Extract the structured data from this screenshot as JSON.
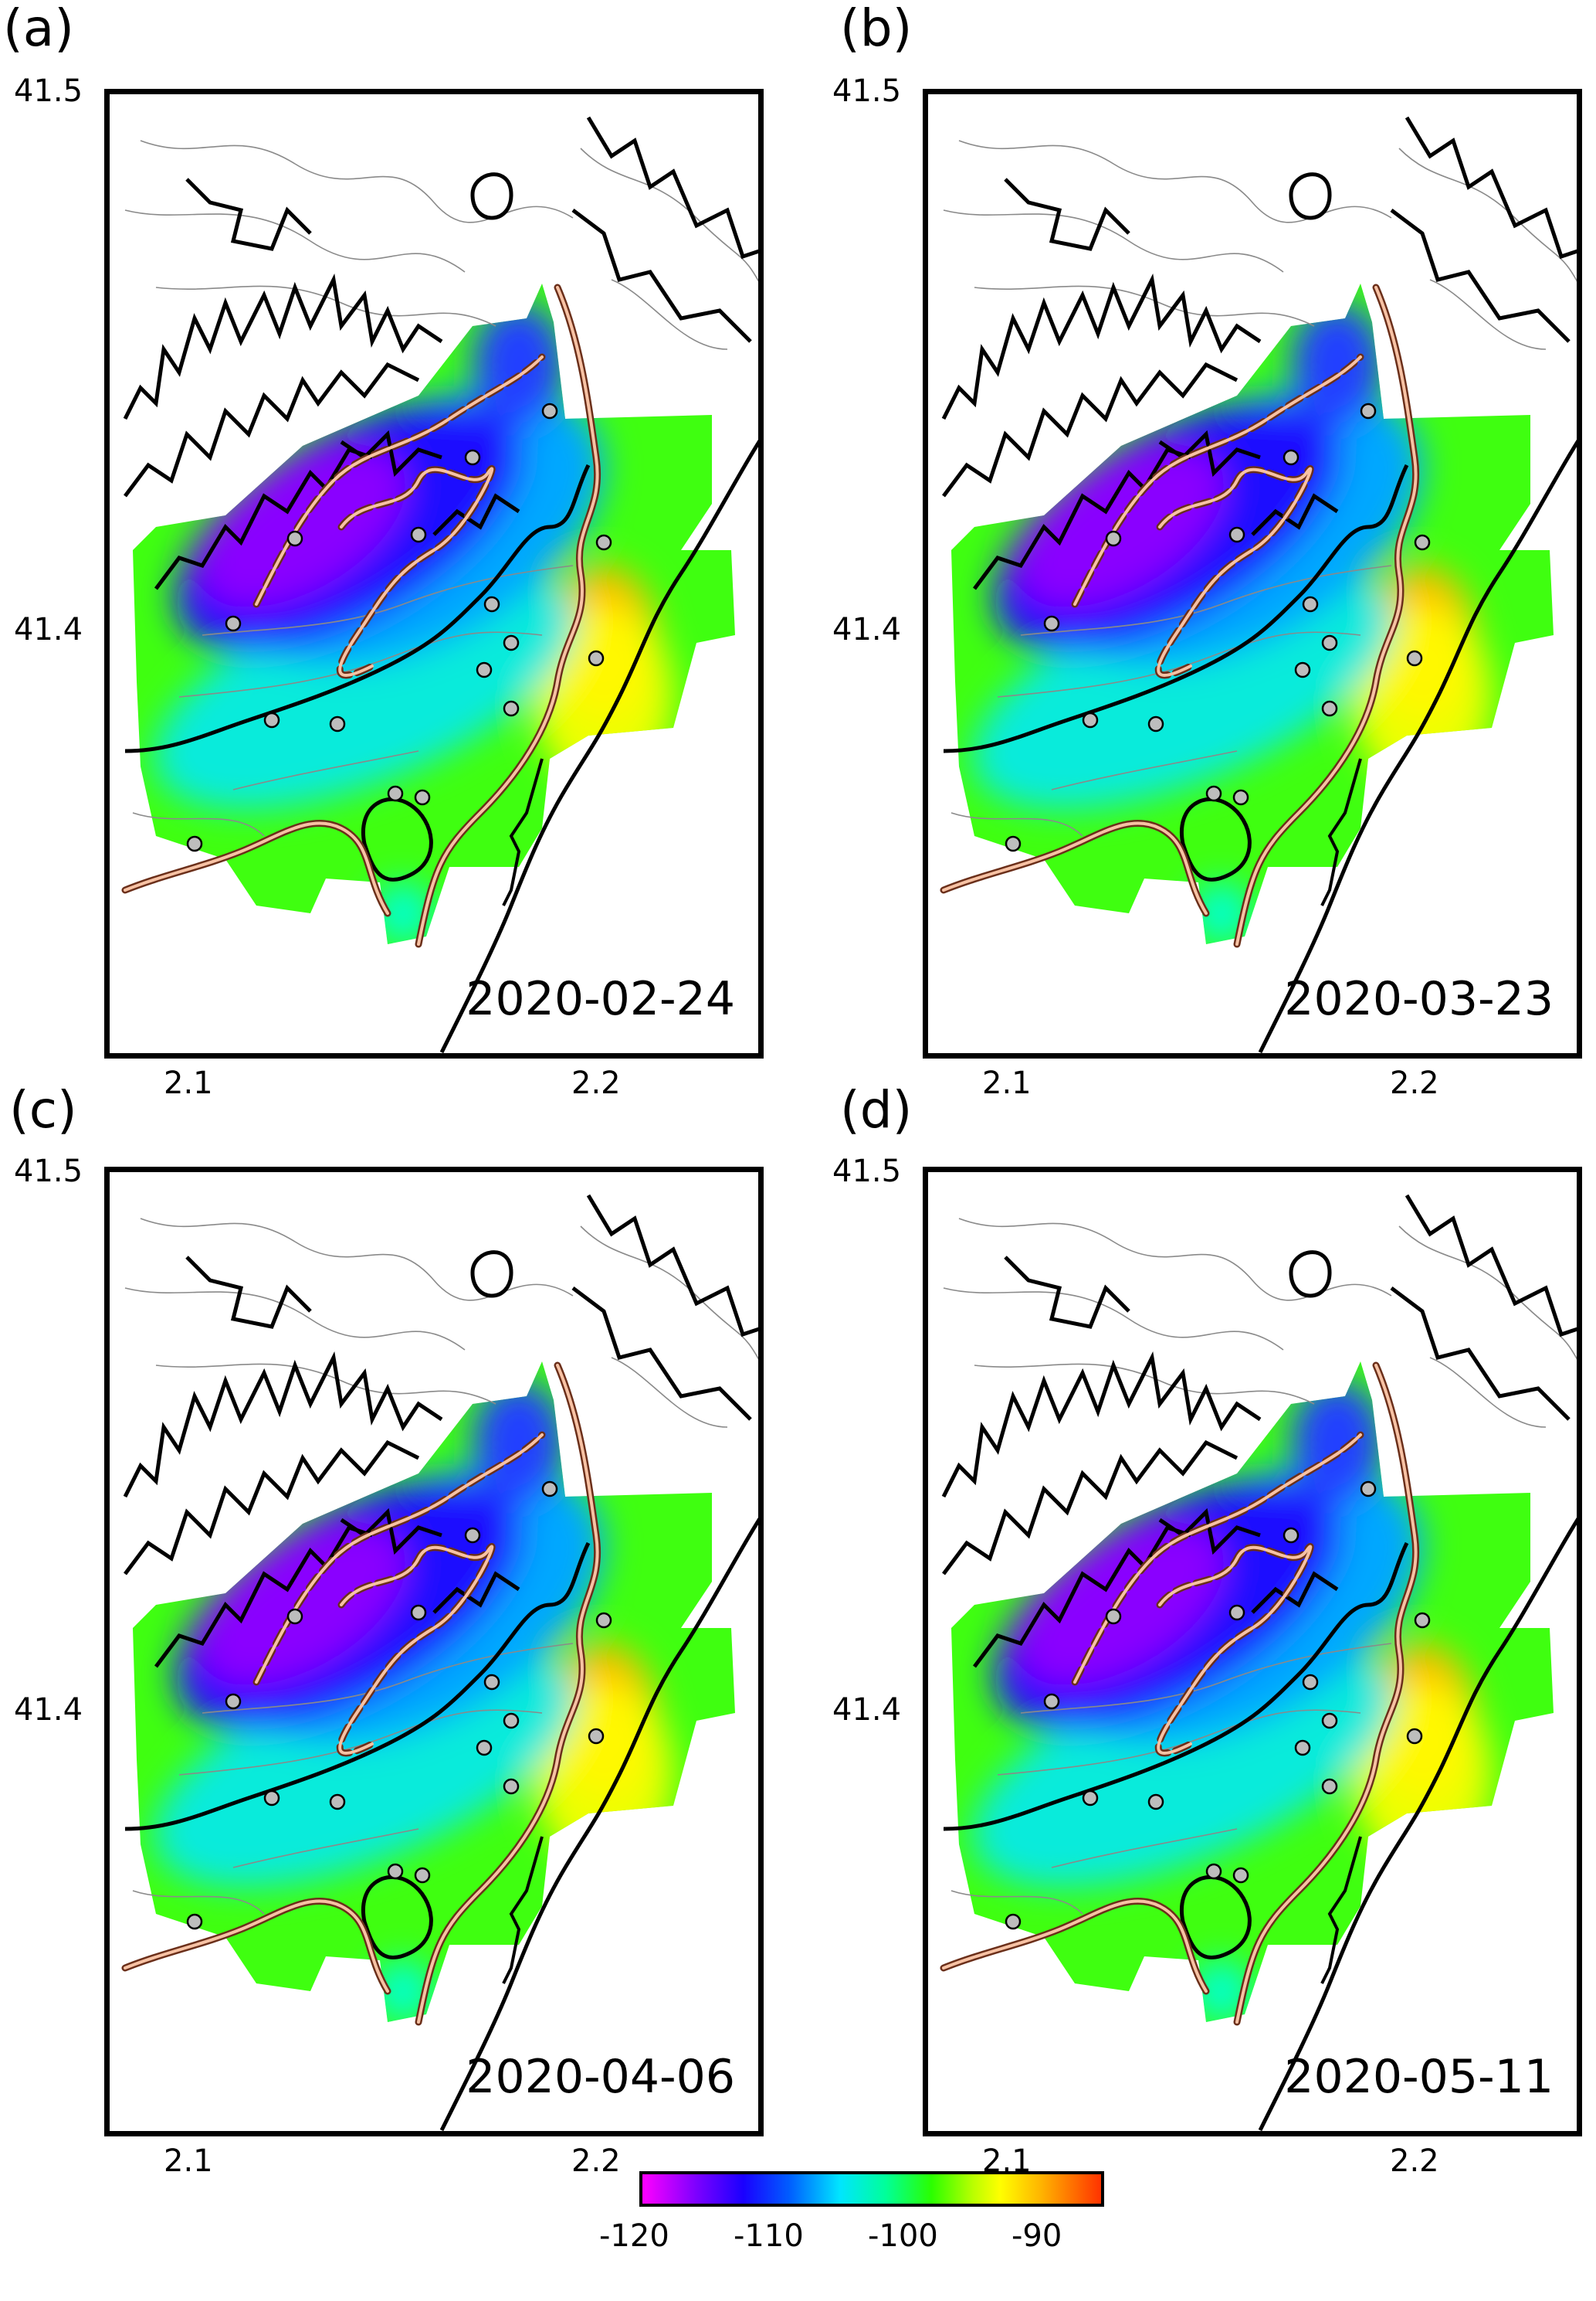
{
  "panels": [
    {
      "label": "(a)",
      "date": "2020-02-24"
    },
    {
      "label": "(b)",
      "date": "2020-03-23"
    },
    {
      "label": "(c)",
      "date": "2020-04-06"
    },
    {
      "label": "(d)",
      "date": "2020-05-11"
    }
  ],
  "axes": {
    "lat_ticks": [
      "41.5",
      "41.4"
    ],
    "lon_ticks": [
      "2.1",
      "2.2"
    ]
  },
  "colorbar": {
    "ticks": [
      "-120",
      "-110",
      "-100",
      "-90"
    ],
    "range": [
      -120,
      -85
    ],
    "colors": [
      "#ff00ff",
      "#1a00ff",
      "#00e5ff",
      "#2aff00",
      "#ffff00",
      "#ff3300"
    ]
  }
}
